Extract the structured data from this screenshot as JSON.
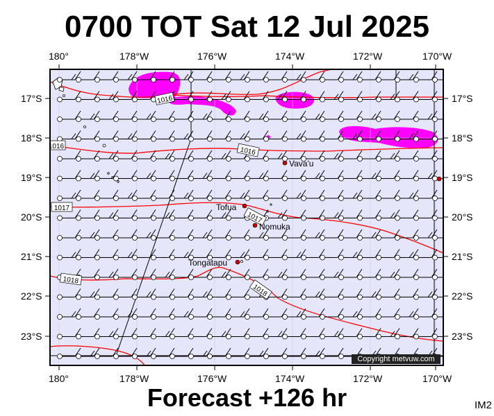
{
  "title": "0700 TOT Sat 12 Jul 2025",
  "footer": "Forecast +126 hr",
  "code": "IM2",
  "copyright": "Copyright metvuw.com",
  "lon_labels": [
    "180°",
    "178°W",
    "176°W",
    "174°W",
    "172°W",
    "170°W"
  ],
  "lat_labels": [
    "17°S",
    "18°S",
    "19°S",
    "20°S",
    "21°S",
    "22°S",
    "23°S"
  ],
  "places": [
    {
      "name": "Vava'u"
    },
    {
      "name": "Tofua"
    },
    {
      "name": "Nomuka"
    },
    {
      "name": "Tongatapu"
    }
  ],
  "isobar_labels": [
    "1016",
    "1016",
    "1016",
    "1017",
    "1017",
    "1018",
    "1018"
  ],
  "colors": {
    "ocean": "#e6e6fa",
    "isobar": "#ff0000",
    "rain": "#ff00ff",
    "place_dot": "#cc0000",
    "wind_barb": "#000000"
  },
  "map_data": {
    "lon_range": [
      "180°",
      "170°W"
    ],
    "lat_range": [
      "16.6°S",
      "23.6°S"
    ],
    "wind": "northwest-pointing barbs, mostly 10–15 kt across the region"
  }
}
